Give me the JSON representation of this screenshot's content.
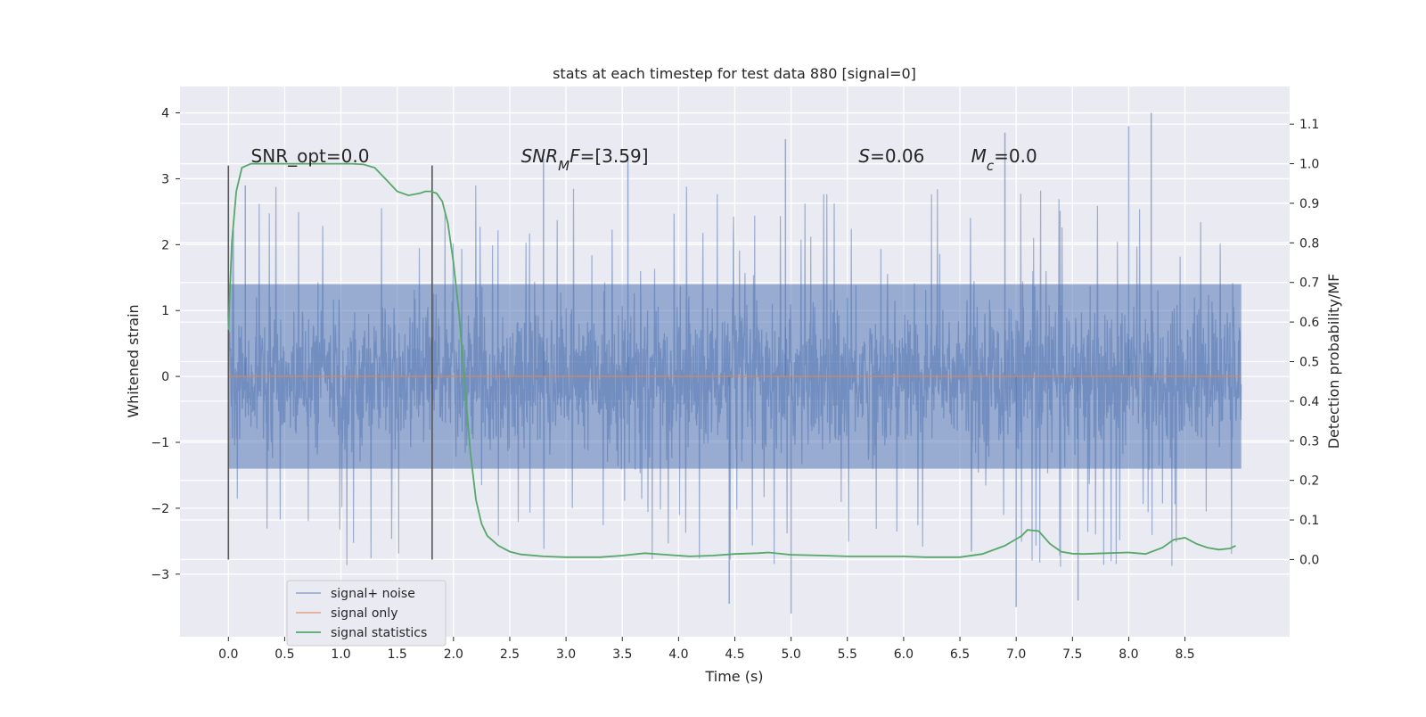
{
  "chart_data": {
    "type": "line",
    "title": "stats at each timestep for test data 880 [signal=0]",
    "xlabel": "Time (s)",
    "ylabel_left": "Whitened strain",
    "ylabel_right": "Detection probability/MF",
    "xlim": [
      -0.43,
      9.43
    ],
    "ylim_left": [
      -3.95,
      4.4
    ],
    "ylim_right": [
      -0.195,
      1.195
    ],
    "x_ticks": [
      0.0,
      0.5,
      1.0,
      1.5,
      2.0,
      2.5,
      3.0,
      3.5,
      4.0,
      4.5,
      5.0,
      5.5,
      6.0,
      6.5,
      7.0,
      7.5,
      8.0,
      8.5
    ],
    "x_tick_labels": [
      "0.0",
      "0.5",
      "1.0",
      "1.5",
      "2.0",
      "2.5",
      "3.0",
      "3.5",
      "4.0",
      "4.5",
      "5.0",
      "5.5",
      "6.0",
      "6.5",
      "7.0",
      "7.5",
      "8.0",
      "8.5"
    ],
    "y_left_ticks": [
      4,
      3,
      2,
      1,
      0,
      -1,
      -2,
      -3
    ],
    "y_left_tick_labels": [
      "4",
      "3",
      "2",
      "1",
      "0",
      "−1",
      "−2",
      "−3"
    ],
    "y_right_ticks": [
      1.1,
      1.0,
      0.9,
      0.8,
      0.7,
      0.6,
      0.5,
      0.4,
      0.3,
      0.2,
      0.1,
      0.0
    ],
    "y_right_tick_labels": [
      "1.1",
      "1.0",
      "0.9",
      "0.8",
      "0.7",
      "0.6",
      "0.5",
      "0.4",
      "0.3",
      "0.2",
      "0.1",
      "0.0"
    ],
    "grid": true,
    "legend_position": "bottom-left",
    "series": [
      {
        "name": "signal+ noise",
        "axis": "left",
        "color": "#4c72b0",
        "kind": "noise",
        "x_range": [
          0.0,
          9.0
        ],
        "envelope": {
          "core_amplitude": 1.4,
          "typical_min": -2.7,
          "typical_max": 2.9,
          "max": 4.0,
          "min": -3.6
        }
      },
      {
        "name": "signal only",
        "axis": "left",
        "color": "#dd8452",
        "kind": "line",
        "x": [
          0.0,
          9.0
        ],
        "y": [
          0.0,
          0.0
        ]
      },
      {
        "name": "signal statistics",
        "axis": "right",
        "color": "#55a868",
        "kind": "line",
        "x": [
          0.0,
          0.03,
          0.07,
          0.12,
          0.2,
          0.3,
          0.5,
          0.7,
          0.9,
          1.0,
          1.1,
          1.2,
          1.3,
          1.4,
          1.5,
          1.6,
          1.7,
          1.75,
          1.8,
          1.85,
          1.9,
          1.95,
          2.0,
          2.05,
          2.1,
          2.15,
          2.2,
          2.25,
          2.3,
          2.4,
          2.5,
          2.6,
          2.8,
          3.0,
          3.3,
          3.5,
          3.7,
          3.9,
          4.1,
          4.3,
          4.5,
          4.7,
          4.8,
          5.0,
          5.3,
          5.5,
          5.8,
          6.0,
          6.2,
          6.5,
          6.7,
          6.9,
          7.05,
          7.1,
          7.2,
          7.3,
          7.4,
          7.5,
          7.6,
          7.8,
          8.0,
          8.15,
          8.3,
          8.4,
          8.5,
          8.6,
          8.7,
          8.8,
          8.9,
          8.95
        ],
        "y": [
          0.58,
          0.8,
          0.93,
          0.99,
          1.0,
          1.0,
          1.0,
          1.0,
          1.0,
          1.0,
          1.0,
          0.998,
          0.99,
          0.96,
          0.93,
          0.92,
          0.925,
          0.93,
          0.93,
          0.925,
          0.905,
          0.85,
          0.75,
          0.62,
          0.44,
          0.27,
          0.15,
          0.09,
          0.06,
          0.035,
          0.02,
          0.013,
          0.008,
          0.006,
          0.006,
          0.01,
          0.016,
          0.012,
          0.008,
          0.01,
          0.014,
          0.016,
          0.018,
          0.012,
          0.01,
          0.008,
          0.008,
          0.008,
          0.006,
          0.006,
          0.014,
          0.035,
          0.06,
          0.075,
          0.072,
          0.04,
          0.02,
          0.015,
          0.014,
          0.016,
          0.018,
          0.014,
          0.03,
          0.05,
          0.055,
          0.04,
          0.03,
          0.025,
          0.028,
          0.035
        ]
      }
    ],
    "vlines": [
      {
        "x": 0.0,
        "ymin": -2.78,
        "ymax": 3.2,
        "color": "#555555"
      },
      {
        "x": 1.81,
        "ymin": -2.78,
        "ymax": 3.2,
        "color": "#555555"
      }
    ],
    "annotations": [
      {
        "id": "snr-opt",
        "x": 0.2,
        "y": 3.25,
        "parts": [
          {
            "t": "SNR_opt=0.0"
          }
        ]
      },
      {
        "id": "snr-mf",
        "x": 2.6,
        "y": 3.25,
        "parts": [
          {
            "t": "SNR",
            "i": true
          },
          {
            "t": "M",
            "i": true,
            "sub": true
          },
          {
            "t": "F",
            "i": true
          },
          {
            "t": "=[3.59]"
          }
        ]
      },
      {
        "id": "s-value",
        "x": 5.6,
        "y": 3.25,
        "parts": [
          {
            "t": "S",
            "i": true
          },
          {
            "t": "=0.06"
          }
        ]
      },
      {
        "id": "mc-value",
        "x": 6.6,
        "y": 3.25,
        "parts": [
          {
            "t": "M",
            "i": true
          },
          {
            "t": "c",
            "i": true,
            "sub": true
          },
          {
            "t": "=0.0"
          }
        ]
      }
    ],
    "legend": [
      "signal+ noise",
      "signal only",
      "signal statistics"
    ]
  }
}
